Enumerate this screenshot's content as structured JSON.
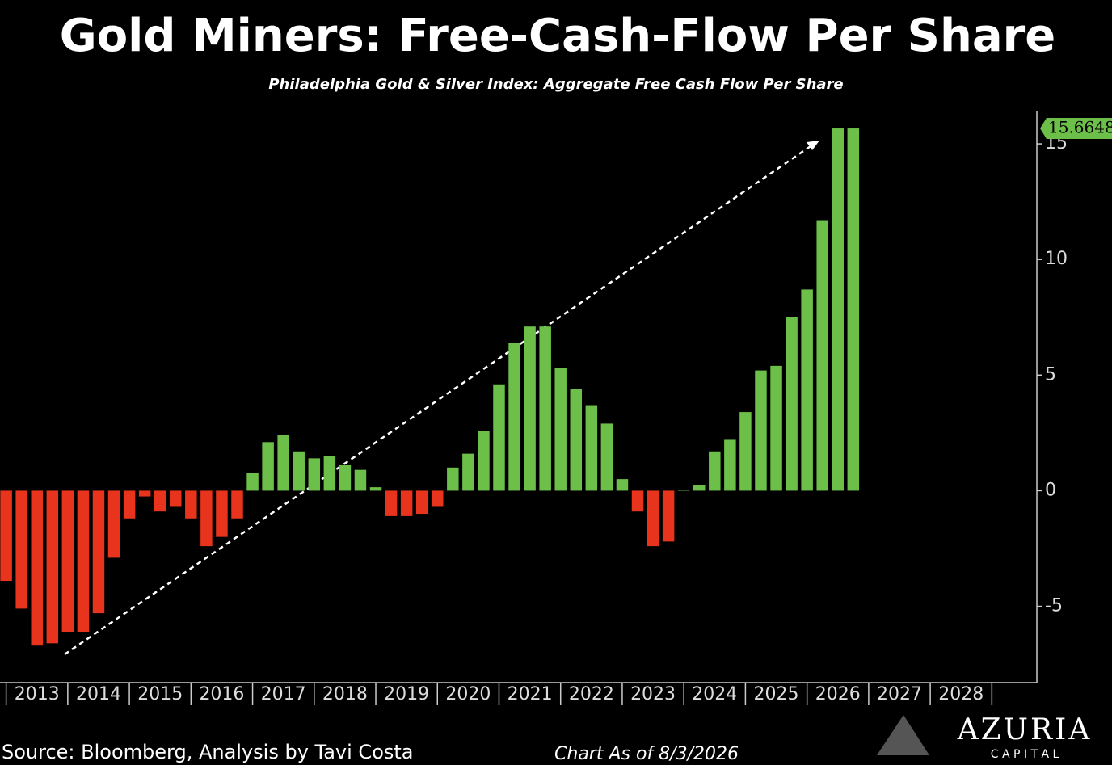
{
  "chart_data": {
    "type": "bar",
    "title": "Gold Miners: Free-Cash-Flow Per Share",
    "subtitle": "Philadelphia Gold & Silver Index: Aggregate Free Cash Flow Per Share",
    "x": [
      2013,
      2013.25,
      2013.5,
      2013.75,
      2014,
      2014.25,
      2014.5,
      2014.75,
      2015,
      2015.25,
      2015.5,
      2015.75,
      2016,
      2016.25,
      2016.5,
      2016.75,
      2017,
      2017.25,
      2017.5,
      2017.75,
      2018,
      2018.25,
      2018.5,
      2018.75,
      2019,
      2019.25,
      2019.5,
      2019.75,
      2020,
      2020.25,
      2020.5,
      2020.75,
      2021,
      2021.25,
      2021.5,
      2021.75,
      2022,
      2022.25,
      2022.5,
      2022.75,
      2023,
      2023.25,
      2023.5,
      2023.75,
      2024,
      2024.25,
      2024.5,
      2024.75,
      2025,
      2025.25,
      2025.5,
      2025.75,
      2026,
      2026.25,
      2026.5,
      2026.75
    ],
    "values": [
      -3.9,
      -5.1,
      -6.7,
      -6.6,
      -6.1,
      -6.1,
      -5.3,
      -2.9,
      -1.2,
      -0.25,
      -0.9,
      -0.7,
      -1.2,
      -2.4,
      -2.0,
      -1.2,
      0.75,
      2.1,
      2.4,
      1.7,
      1.4,
      1.5,
      1.1,
      0.9,
      0.15,
      -1.1,
      -1.1,
      -1.0,
      -0.7,
      1.0,
      1.6,
      2.6,
      4.6,
      6.4,
      7.1,
      7.1,
      5.3,
      4.4,
      3.7,
      2.9,
      0.5,
      -0.9,
      -2.4,
      -2.2,
      0.05,
      0.25,
      1.7,
      2.2,
      3.4,
      5.2,
      5.4,
      7.5,
      8.7,
      11.7,
      15.6648,
      15.6648
    ],
    "positive_color": "#6cc04a",
    "negative_color": "#e8341c",
    "last_value_label": "15.6648",
    "xlim": [
      2012.9,
      2029.73
    ],
    "xticks": [
      2013,
      2014,
      2015,
      2016,
      2017,
      2018,
      2019,
      2020,
      2021,
      2022,
      2023,
      2024,
      2025,
      2026,
      2027,
      2028
    ],
    "ylim": [
      -8.3,
      16.4
    ],
    "yticks": [
      -5,
      0,
      5,
      10,
      15
    ],
    "source": "Source: Bloomberg, Analysis by Tavi Costa",
    "date_note": "Chart As of 8/3/2026",
    "brand": "AZURIA",
    "brand_sub": "C A P I T A L"
  }
}
